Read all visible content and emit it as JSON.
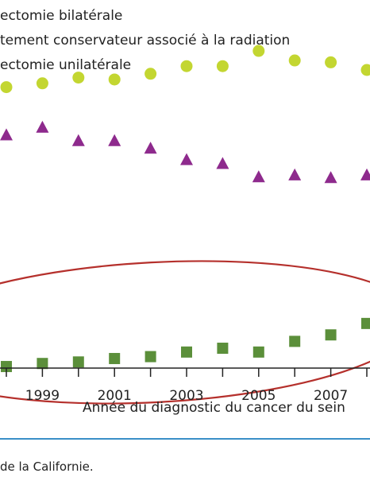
{
  "chart_data": {
    "type": "scatter",
    "xlabel": "Année du diagnostic du cancer du sein",
    "x_ticks": [
      1999,
      2001,
      2003,
      2005,
      2007
    ],
    "x_tick_labels": [
      "1999",
      "2001",
      "2003",
      "2005",
      "2007"
    ],
    "xlim": [
      1997.85,
      2008.5
    ],
    "ylim": [
      -3,
      83
    ],
    "grid": false,
    "legend_placement": "top-left",
    "annotation": "red ellipse around bilateral mastectomy series",
    "series": [
      {
        "name": "Mastectomie bilatérale",
        "legend_label": "ectomie bilatérale",
        "marker": "square",
        "color": "#5b8f3a",
        "x": [
          1998,
          1999,
          2000,
          2001,
          2002,
          2003,
          2004,
          2005,
          2006,
          2007,
          2008
        ],
        "y": [
          1.2,
          2.0,
          2.4,
          3.3,
          3.8,
          5.0,
          6.0,
          5.0,
          7.8,
          9.5,
          12.5
        ]
      },
      {
        "name": "Traitement conservateur associé à la radiation",
        "legend_label": "tement conservateur associé à la radiation",
        "marker": "circle",
        "color": "#c3d631",
        "x": [
          1998,
          1999,
          2000,
          2001,
          2002,
          2003,
          2004,
          2005,
          2006,
          2007,
          2008
        ],
        "y": [
          74.5,
          75.5,
          77.0,
          76.5,
          78.0,
          80.0,
          80.0,
          84.0,
          81.5,
          81.0,
          79.0
        ]
      },
      {
        "name": "Mastectomie unilatérale",
        "legend_label": "ectomie unilatérale",
        "marker": "triangle",
        "color": "#8e2a8d",
        "x": [
          1998,
          1999,
          2000,
          2001,
          2002,
          2003,
          2004,
          2005,
          2006,
          2007,
          2008
        ],
        "y": [
          62.0,
          64.0,
          60.5,
          60.5,
          58.5,
          55.5,
          54.5,
          51.0,
          51.5,
          50.8,
          51.5
        ]
      }
    ]
  },
  "source_note": "de la Californie."
}
